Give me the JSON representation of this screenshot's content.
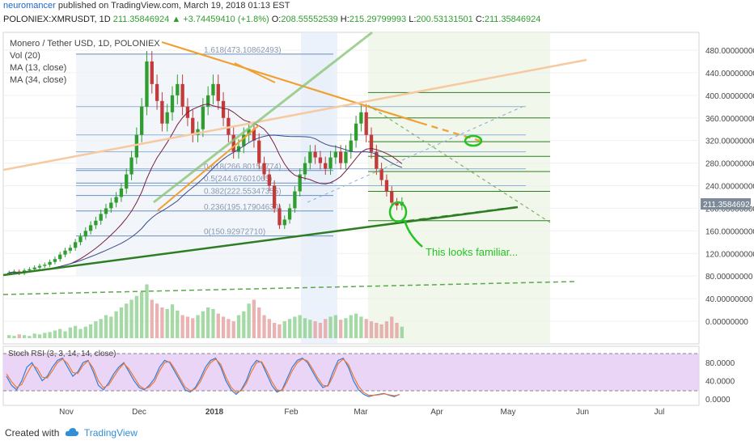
{
  "header": {
    "author": "neuromancer",
    "published_text": "published on TradingView.com, March 19, 2018 01:13 EST"
  },
  "quote": {
    "symbol": "POLONIEX:XMRUSDT, 1D",
    "price": "211.35846924",
    "change": "▲ +3.74459410 (+1.8%)",
    "o_label": "O:",
    "o": "208.55552539",
    "h_label": "H:",
    "h": "215.29799993",
    "l_label": "L:",
    "l": "200.53131501",
    "c_label": "C:",
    "c": "211.35846924"
  },
  "legend": {
    "title": "Monero / Tether USD, 1D, POLONIEX",
    "vol": "Vol (20)",
    "ma13": "MA (13, close)",
    "ma34": "MA (34, close)"
  },
  "rsi": {
    "label": "Stoch RSI (3, 3, 14, 14, close)"
  },
  "annotation": {
    "text": "This looks familiar..."
  },
  "footer": {
    "created_with": "Created with",
    "brand": "TradingView"
  },
  "colors": {
    "up": "#2f9e2f",
    "down": "#c23b3b",
    "fib_line": "#6a8fbf",
    "trend_green": "#2e7d22",
    "trend_orange": "#f0a030",
    "rsi_band": "#e8d0f6"
  },
  "chart_data": {
    "type": "candlestick",
    "title": "Monero / Tether USD, 1D, POLONIEX",
    "x_axis_labels": [
      "Nov",
      "Dec",
      "2018",
      "Feb",
      "Mar",
      "Apr",
      "May",
      "Jun",
      "Jul"
    ],
    "price_axis": {
      "labels": [
        "480.00000000",
        "440.00000000",
        "400.00000000",
        "360.00000000",
        "320.00000000",
        "280.00000000",
        "240.00000000",
        "200.00000000",
        "160.00000000",
        "120.00000000",
        "80.00000000",
        "40.00000000",
        "0.00000000"
      ],
      "range": [
        -20,
        500
      ],
      "current_price": "211.35846924"
    },
    "rsi_axis": {
      "labels": [
        "80.0000",
        "40.0000",
        "0.0000"
      ],
      "upper_band": 80,
      "lower_band": 20
    },
    "fib_levels": [
      {
        "label": "1.618(473.10862493)",
        "value": 473.1
      },
      {
        "label": "0.618(266.80154774)",
        "value": 266.8
      },
      {
        "label": "0.5(244.67601065)",
        "value": 244.7
      },
      {
        "label": "0.382(222.55347355)",
        "value": 222.6
      },
      {
        "label": "0.236(195.17904630)",
        "value": 195.2
      },
      {
        "label": "0(150.92972710)",
        "value": 150.9
      }
    ],
    "close_series": [
      86,
      88,
      85,
      90,
      92,
      95,
      98,
      100,
      105,
      110,
      118,
      125,
      130,
      140,
      150,
      160,
      170,
      178,
      190,
      200,
      210,
      220,
      235,
      260,
      290,
      330,
      380,
      460,
      420,
      390,
      350,
      370,
      400,
      420,
      380,
      360,
      330,
      340,
      380,
      400,
      420,
      390,
      360,
      330,
      300,
      310,
      330,
      340,
      320,
      280,
      260,
      240,
      200,
      170,
      180,
      200,
      230,
      260,
      280,
      300,
      290,
      280,
      270,
      290,
      300,
      280,
      300,
      320,
      350,
      370,
      330,
      300,
      270,
      250,
      230,
      210,
      205,
      211
    ],
    "volume_series": [
      4,
      3,
      5,
      4,
      3,
      6,
      5,
      7,
      8,
      10,
      12,
      9,
      14,
      16,
      12,
      15,
      18,
      22,
      25,
      30,
      28,
      35,
      40,
      45,
      50,
      55,
      60,
      70,
      50,
      45,
      40,
      38,
      44,
      36,
      30,
      28,
      26,
      30,
      35,
      40,
      38,
      32,
      28,
      25,
      22,
      30,
      35,
      45,
      50,
      40,
      30,
      25,
      20,
      18,
      22,
      25,
      28,
      30,
      26,
      24,
      22,
      20,
      25,
      28,
      30,
      24,
      26,
      30,
      32,
      28,
      25,
      22,
      20,
      18,
      22,
      28,
      20,
      15
    ],
    "stoch_rsi_k": [
      50,
      30,
      20,
      40,
      70,
      80,
      60,
      40,
      50,
      70,
      85,
      90,
      70,
      50,
      60,
      80,
      85,
      60,
      30,
      20,
      35,
      55,
      70,
      80,
      60,
      40,
      25,
      20,
      30,
      45,
      70,
      85,
      80,
      60,
      40,
      20,
      15,
      25,
      45,
      70,
      85,
      90,
      70,
      40,
      20,
      10,
      20,
      40,
      70,
      85,
      80,
      55,
      30,
      15,
      20,
      45,
      70,
      85,
      90,
      80,
      60,
      40,
      25,
      30,
      60,
      85,
      90,
      70,
      40,
      20,
      10,
      5,
      8,
      10,
      12,
      8,
      5,
      10
    ],
    "stoch_rsi_d": [
      55,
      38,
      25,
      32,
      55,
      75,
      68,
      48,
      46,
      62,
      80,
      88,
      78,
      58,
      56,
      74,
      84,
      68,
      40,
      25,
      30,
      48,
      65,
      78,
      66,
      48,
      30,
      22,
      26,
      38,
      62,
      80,
      82,
      66,
      46,
      26,
      18,
      22,
      38,
      62,
      80,
      88,
      76,
      48,
      26,
      14,
      18,
      34,
      60,
      80,
      82,
      62,
      38,
      20,
      18,
      38,
      62,
      80,
      88,
      84,
      66,
      46,
      30,
      28,
      50,
      78,
      88,
      76,
      50,
      28,
      14,
      8,
      8,
      9,
      11,
      9,
      7,
      9
    ]
  }
}
